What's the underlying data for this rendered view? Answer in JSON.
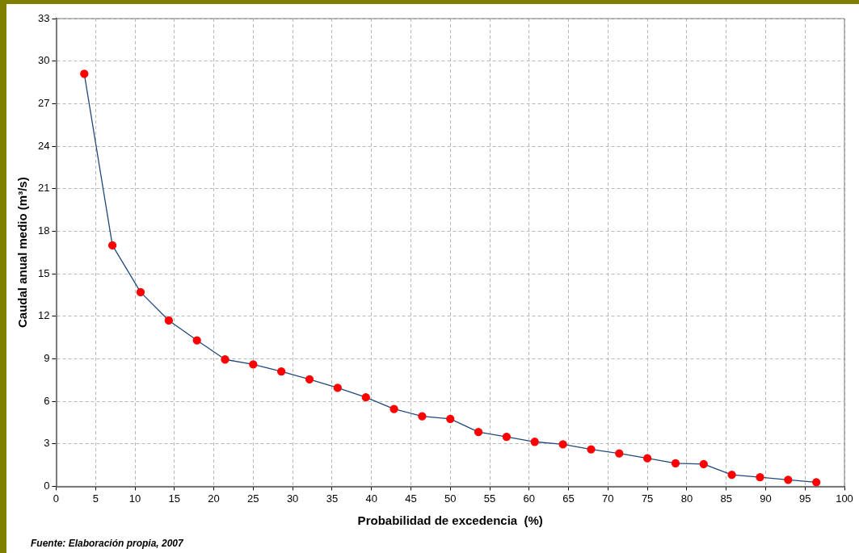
{
  "chart_data": {
    "type": "line",
    "xlabel": "Probabilidad de excedencia  (%)",
    "ylabel": "Caudal anual medio (m³/s)",
    "annotations": [
      "Fuente: Elaboración propia, 2007"
    ],
    "series": [
      {
        "color": "#1f497d",
        "x": [
          3.57,
          7.14,
          10.71,
          14.29,
          17.86,
          21.43,
          25,
          28.57,
          32.14,
          35.71,
          39.29,
          42.86,
          46.43,
          50,
          53.57,
          57.14,
          60.71,
          64.29,
          67.86,
          71.43,
          75,
          78.57,
          82.14,
          85.71,
          89.29,
          92.86,
          96.43
        ],
        "values": [
          29.1,
          17.0,
          13.7,
          11.7,
          10.3,
          8.95,
          8.6,
          8.1,
          7.55,
          6.95,
          6.28,
          5.46,
          4.94,
          4.76,
          3.83,
          3.49,
          3.14,
          2.96,
          2.61,
          2.32,
          1.98,
          1.63,
          1.57,
          0.81,
          0.64,
          0.46,
          0.29
        ],
        "colors": [
          "#ff0000",
          "#ff0000",
          "#ff0000",
          "#ff0000",
          "#ff0000",
          "#ff0000",
          "#ff0000",
          "#ff0000",
          "#ff0000",
          "#ff0000",
          "#ff0000",
          "#ff0000",
          "#ff0000",
          "#ff0000",
          "#ff0000",
          "#ff0000",
          "#ff0000",
          "#ff0000",
          "#ff0000",
          "#ff0000",
          "#ff0000",
          "#ff0000",
          "#ff0000",
          "#ff0000",
          "#ff0000",
          "#ff0000",
          "#ff0000"
        ]
      }
    ],
    "marker": "circle",
    "xlim": [
      0,
      100
    ],
    "xticks": [
      0,
      5,
      10,
      15,
      20,
      25,
      30,
      35,
      40,
      45,
      50,
      55,
      60,
      65,
      70,
      75,
      80,
      85,
      90,
      95,
      100
    ],
    "ylim": [
      0,
      33
    ],
    "yticks": [
      0,
      3,
      6,
      9,
      12,
      15,
      18,
      21,
      24,
      27,
      30,
      33
    ],
    "grid": true,
    "legend": false
  }
}
